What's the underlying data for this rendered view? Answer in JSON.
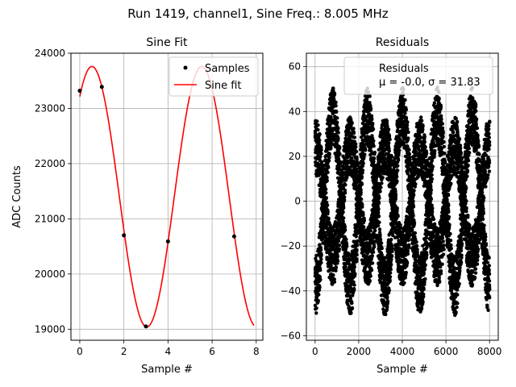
{
  "figure": {
    "suptitle": "Run 1419, channel1, Sine Freq.: 8.005 MHz"
  },
  "chart_data": [
    {
      "type": "line",
      "title": "Sine Fit",
      "xlabel": "Sample #",
      "ylabel": "ADC Counts",
      "xlim": [
        -0.4,
        8.3
      ],
      "ylim": [
        18800,
        24000
      ],
      "xticks": [
        0,
        2,
        4,
        6,
        8
      ],
      "yticks": [
        19000,
        20000,
        21000,
        22000,
        23000,
        24000
      ],
      "grid": true,
      "legend_position": "top-right",
      "sine_model": {
        "offset": 21400,
        "amplitude": 2360,
        "period": 4.98,
        "phase_peak_x": 0.55,
        "x_range": [
          0,
          7.9
        ]
      },
      "series": [
        {
          "name": "Samples",
          "kind": "scatter",
          "color": "#000000",
          "x": [
            0,
            1,
            2,
            3,
            4,
            7
          ],
          "y": [
            23320,
            23390,
            20700,
            19050,
            20590,
            20680
          ]
        },
        {
          "name": "Sine fit",
          "kind": "line",
          "color": "#ff0000"
        }
      ]
    },
    {
      "type": "scatter",
      "title": "Residuals",
      "xlabel": "Sample #",
      "ylabel": "",
      "xlim": [
        -400,
        8400
      ],
      "ylim": [
        -62,
        66
      ],
      "xticks": [
        0,
        2000,
        4000,
        6000,
        8000
      ],
      "yticks": [
        -60,
        -40,
        -20,
        0,
        20,
        40,
        60
      ],
      "grid": true,
      "legend_position": "top-right",
      "legend": {
        "label": "Residuals",
        "stats": "μ = -0.0, σ = 31.83"
      },
      "series": [
        {
          "name": "Residuals",
          "kind": "scatter",
          "color": "#000000",
          "n_points": 8000,
          "x_range": [
            0,
            8000
          ],
          "period": 1600,
          "bands": [
            {
              "center_at_x0": 25,
              "phase_offset": 0
            },
            {
              "center_at_x0": -38,
              "phase_offset": 0.5
            }
          ],
          "amplitude": 25,
          "spread": 13
        }
      ]
    }
  ]
}
